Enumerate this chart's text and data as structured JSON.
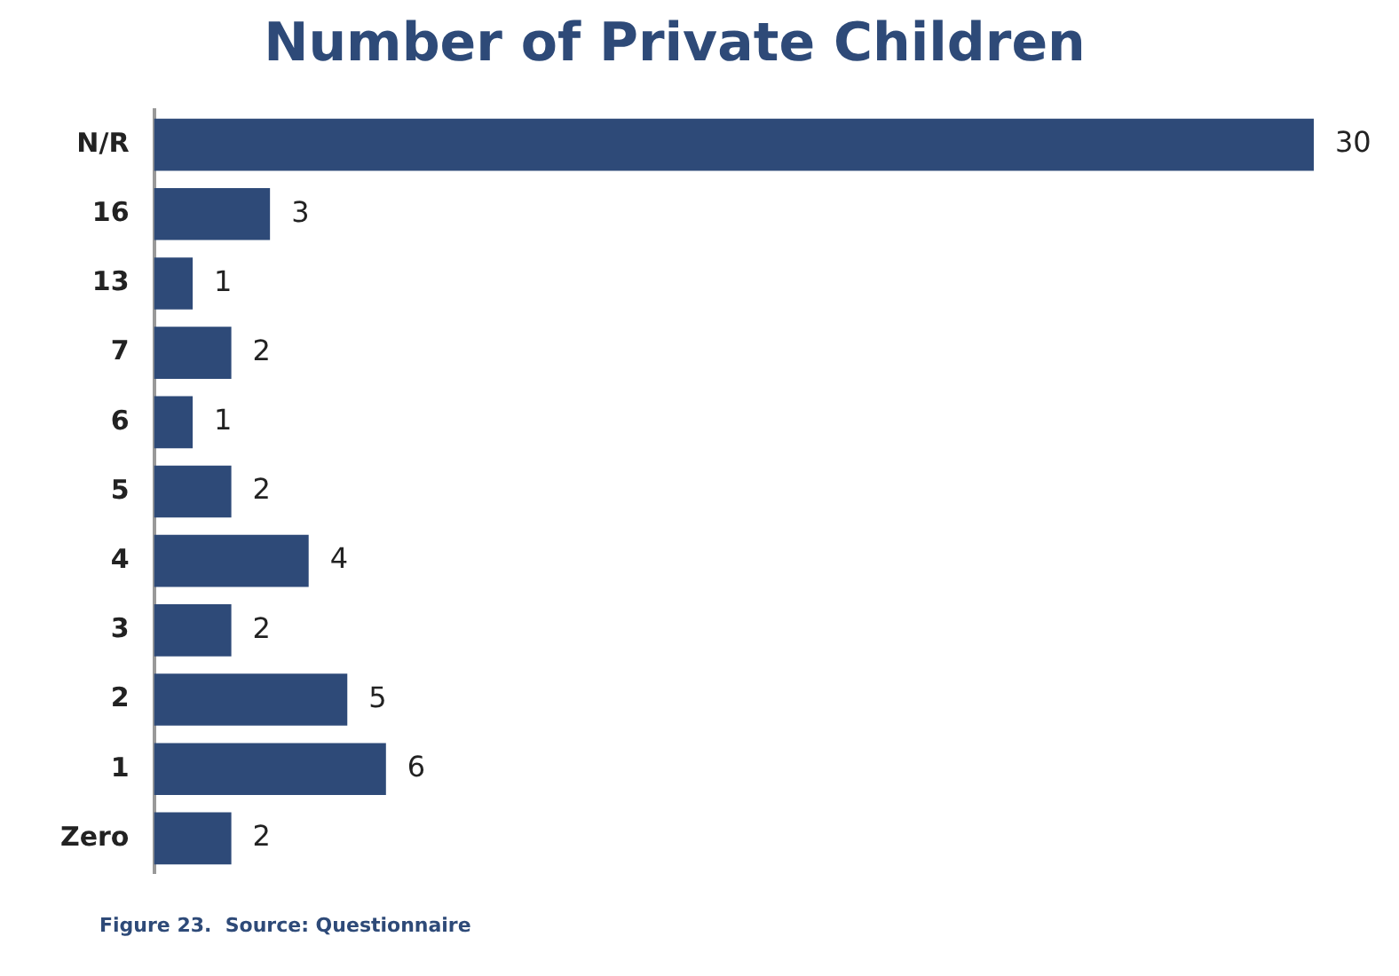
{
  "chart_data": {
    "type": "bar",
    "orientation": "horizontal",
    "title": "Number of Private Children",
    "categories": [
      "N/R",
      "16",
      "13",
      "7",
      "6",
      "5",
      "4",
      "3",
      "2",
      "1",
      "Zero"
    ],
    "values": [
      30,
      3,
      1,
      2,
      1,
      2,
      4,
      2,
      5,
      6,
      2
    ],
    "color": "#2e4a78",
    "data_labels": true,
    "tick_labels": "y",
    "annotations": [
      "Figure 23.  Source: Questionnaire"
    ]
  }
}
